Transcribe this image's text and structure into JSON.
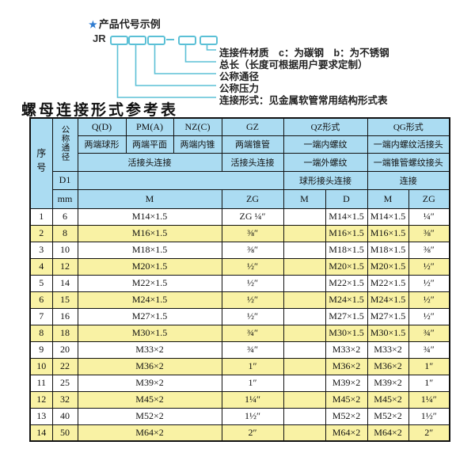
{
  "colors": {
    "header_blue": "#abdcf2",
    "row_yellow": "#f9f2a4",
    "line_teal": "#5bc0d6",
    "star_blue": "#2e7bd0"
  },
  "diagram": {
    "star": "★",
    "title": "产品代号示例",
    "code_prefix": "JR",
    "labels": [
      "连接件材质　c：为碳钢　b：为不锈钢",
      "总长（长度可根据用户要求定制）",
      "公称通径",
      "公称压力",
      "连接形式：见金属软管常用结构形式表"
    ]
  },
  "table_title": "螺母连接形式参考表",
  "table": {
    "header": {
      "seq": "序号",
      "dn": "公称通径",
      "d1": "D1",
      "mm": "mm",
      "col_q": "Q(D)",
      "col_pm": "PM(A)",
      "col_nz": "NZ(C)",
      "col_gz": "GZ",
      "col_qz": "QZ形式",
      "col_qg": "QG形式",
      "q_desc": "两端球形",
      "pm_desc": "两端平面",
      "nz_desc": "两端内锥",
      "gz_desc": "两端锥管",
      "qz_desc1": "一端内螺纹",
      "qg_desc1": "一端内螺纹活接头",
      "union_conn": "活接头连接",
      "gz_conn": "活接头连接",
      "qz_desc2": "一端外螺纹",
      "qg_desc2": "一端锥管螺纹接头",
      "qz_conn": "球形接头连接",
      "qg_conn": "连接",
      "m_label": "M",
      "zg_label": "ZG",
      "qz_m_label": "M",
      "qz_d_label": "D",
      "qg_m_label": "M",
      "qg_zg_label": "ZG"
    },
    "rows": [
      {
        "seq": "1",
        "dn": "6",
        "m": "M14×1.5",
        "zg": "ZG ¼″",
        "qz_m": "",
        "qz_d": "M14×1.5",
        "qg_m": "M14×1.5",
        "qg_zg": "¼″"
      },
      {
        "seq": "2",
        "dn": "8",
        "m": "M16×1.5",
        "zg": "⅜″",
        "qz_m": "",
        "qz_d": "M16×1.5",
        "qg_m": "M16×1.5",
        "qg_zg": "⅜″"
      },
      {
        "seq": "3",
        "dn": "10",
        "m": "M18×1.5",
        "zg": "⅜″",
        "qz_m": "",
        "qz_d": "M18×1.5",
        "qg_m": "M18×1.5",
        "qg_zg": "⅜″"
      },
      {
        "seq": "4",
        "dn": "12",
        "m": "M20×1.5",
        "zg": "½″",
        "qz_m": "",
        "qz_d": "M20×1.5",
        "qg_m": "M20×1.5",
        "qg_zg": "½″"
      },
      {
        "seq": "5",
        "dn": "14",
        "m": "M22×1.5",
        "zg": "½″",
        "qz_m": "",
        "qz_d": "M22×1.5",
        "qg_m": "M22×1.5",
        "qg_zg": "½″"
      },
      {
        "seq": "6",
        "dn": "15",
        "m": "M24×1.5",
        "zg": "½″",
        "qz_m": "",
        "qz_d": "M24×1.5",
        "qg_m": "M24×1.5",
        "qg_zg": "½″"
      },
      {
        "seq": "7",
        "dn": "16",
        "m": "M27×1.5",
        "zg": "½″",
        "qz_m": "",
        "qz_d": "M27×1.5",
        "qg_m": "M27×1.5",
        "qg_zg": "½″"
      },
      {
        "seq": "8",
        "dn": "18",
        "m": "M30×1.5",
        "zg": "¾″",
        "qz_m": "",
        "qz_d": "M30×1.5",
        "qg_m": "M30×1.5",
        "qg_zg": "¾″"
      },
      {
        "seq": "9",
        "dn": "20",
        "m": "M33×2",
        "zg": "¾″",
        "qz_m": "",
        "qz_d": "M33×2",
        "qg_m": "M33×2",
        "qg_zg": "¾″"
      },
      {
        "seq": "10",
        "dn": "22",
        "m": "M36×2",
        "zg": "1″",
        "qz_m": "",
        "qz_d": "M36×2",
        "qg_m": "M36×2",
        "qg_zg": "1″"
      },
      {
        "seq": "11",
        "dn": "25",
        "m": "M39×2",
        "zg": "1″",
        "qz_m": "",
        "qz_d": "M39×2",
        "qg_m": "M39×2",
        "qg_zg": "1″"
      },
      {
        "seq": "12",
        "dn": "32",
        "m": "M45×2",
        "zg": "1¼″",
        "qz_m": "",
        "qz_d": "M45×2",
        "qg_m": "M45×2",
        "qg_zg": "1¼″"
      },
      {
        "seq": "13",
        "dn": "40",
        "m": "M52×2",
        "zg": "1½″",
        "qz_m": "",
        "qz_d": "M52×2",
        "qg_m": "M52×2",
        "qg_zg": "1½″"
      },
      {
        "seq": "14",
        "dn": "50",
        "m": "M64×2",
        "zg": "2″",
        "qz_m": "",
        "qz_d": "M64×2",
        "qg_m": "M64×2",
        "qg_zg": "2″"
      }
    ]
  }
}
